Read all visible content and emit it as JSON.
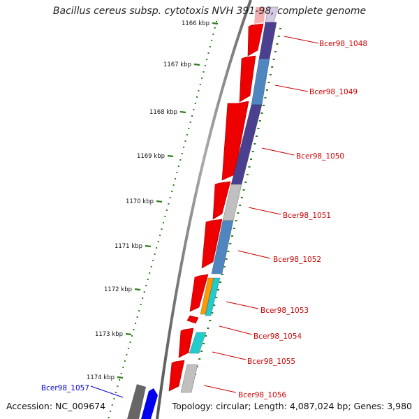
{
  "title": "Bacillus cereus subsp. cytotoxis NVH 391-98, complete genome",
  "footer": {
    "accession": "Accession: NC_009674",
    "summary": "Topology: circular; Length: 4,087,024 bp; Genes: 3,980"
  },
  "colors": {
    "forward_gene": "#ee0000",
    "backbone": "#777777",
    "tick": "#2e7d1a",
    "label_forward": "#cc0000",
    "label_reverse": "#0000cc",
    "dark_blue": "#4b3f8f",
    "steel_blue": "#4f86c0",
    "light_gray": "#c0c0c0",
    "cyan": "#22cccc",
    "orange": "#ff9900",
    "dark_gray": "#666666",
    "blue": "#0000ee"
  },
  "ticks": [
    {
      "label": "1166 kbp"
    },
    {
      "label": "1167 kbp"
    },
    {
      "label": "1168 kbp"
    },
    {
      "label": "1169 kbp"
    },
    {
      "label": "1170 kbp"
    },
    {
      "label": "1171 kbp"
    },
    {
      "label": "1172 kbp"
    },
    {
      "label": "1173 kbp"
    },
    {
      "label": "1174 kbp"
    }
  ],
  "gene_labels": [
    {
      "name": "Bcer98_1048",
      "strand": "forward"
    },
    {
      "name": "Bcer98_1049",
      "strand": "forward"
    },
    {
      "name": "Bcer98_1050",
      "strand": "forward"
    },
    {
      "name": "Bcer98_1051",
      "strand": "forward"
    },
    {
      "name": "Bcer98_1052",
      "strand": "forward"
    },
    {
      "name": "Bcer98_1053",
      "strand": "forward"
    },
    {
      "name": "Bcer98_1054",
      "strand": "forward"
    },
    {
      "name": "Bcer98_1055",
      "strand": "forward"
    },
    {
      "name": "Bcer98_1056",
      "strand": "forward"
    },
    {
      "name": "Bcer98_1057",
      "strand": "reverse"
    }
  ]
}
